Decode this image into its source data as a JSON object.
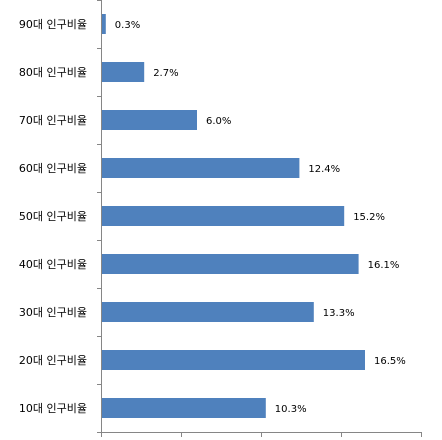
{
  "chart_data": {
    "type": "bar",
    "orientation": "horizontal",
    "categories": [
      "90대 인구비율",
      "80대 인구비율",
      "70대 인구비율",
      "60대 인구비율",
      "50대 인구비율",
      "40대 인구비율",
      "30대 인구비율",
      "20대 인구비율",
      "10대 인구비율"
    ],
    "values": [
      0.3,
      2.7,
      6.0,
      12.4,
      15.2,
      16.1,
      13.3,
      16.5,
      10.3
    ],
    "value_labels": [
      "0.3%",
      "2.7%",
      "6.0%",
      "12.4%",
      "15.2%",
      "16.1%",
      "13.3%",
      "16.5%",
      "10.3%"
    ],
    "xlim": [
      0,
      20
    ],
    "x_tick_values": [
      0,
      5,
      10,
      15,
      20
    ],
    "grid": false,
    "legend": "none",
    "bar_color": "#4F81BD"
  }
}
